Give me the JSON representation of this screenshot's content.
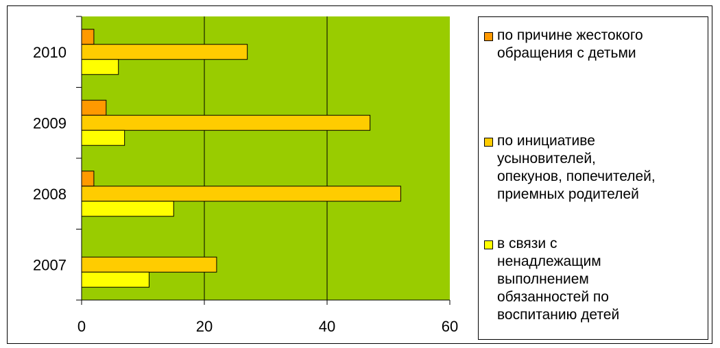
{
  "chart_data": {
    "type": "bar",
    "orientation": "horizontal",
    "categories": [
      "2007",
      "2008",
      "2009",
      "2010"
    ],
    "series": [
      {
        "name": "по причине жестокого обращения с детьми",
        "color": "#FF9900",
        "values": [
          0,
          2,
          4,
          2
        ]
      },
      {
        "name": "по инициативе усыновителей, опекунов, попечителей, приемных родителей",
        "color": "#FFCC00",
        "values": [
          22,
          52,
          47,
          27
        ]
      },
      {
        "name": "в связи с ненадлежащим выполнением обязанностей по воспитанию детей",
        "color": "#FFFF00",
        "values": [
          11,
          15,
          7,
          6
        ]
      }
    ],
    "xlim": [
      0,
      60
    ],
    "xticks": [
      "0",
      "20",
      "40",
      "60"
    ],
    "grid": true,
    "plot_background": "#99CC00",
    "legend_position": "right"
  },
  "legend": {
    "items": [
      {
        "label": "по причине жестокого\nобращения с детьми",
        "color": "#FF9900"
      },
      {
        "label": "по инициативе\nусыновителей,\nопекунов, попечителей,\nприемных родителей",
        "color": "#FFCC00"
      },
      {
        "label": "в связи с\nненадлежащим\nвыполнением\nобязанностей по\nвоспитанию детей",
        "color": "#FFFF00"
      }
    ]
  }
}
